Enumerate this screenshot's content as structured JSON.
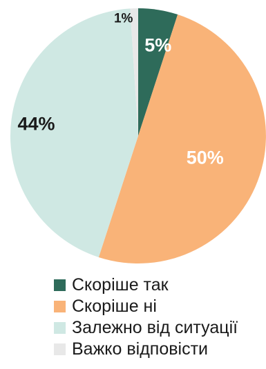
{
  "chart_data": {
    "type": "pie",
    "title": "",
    "slices": [
      {
        "label": "Скоріше так",
        "value": 5,
        "value_label": "5%",
        "color": "#2e6b5a",
        "label_color": "#ffffff"
      },
      {
        "label": "Скоріше ні",
        "value": 50,
        "value_label": "50%",
        "color": "#f9b378",
        "label_color": "#ffffff"
      },
      {
        "label": "Залежно від ситуації",
        "value": 44,
        "value_label": "44%",
        "color": "#cfe8e3",
        "label_color": "#1a1a1a"
      },
      {
        "label": "Важко відповісти",
        "value": 1,
        "value_label": "1%",
        "color": "#e8e8e8",
        "label_color": "#1a1a1a"
      }
    ],
    "legend_position": "bottom"
  }
}
